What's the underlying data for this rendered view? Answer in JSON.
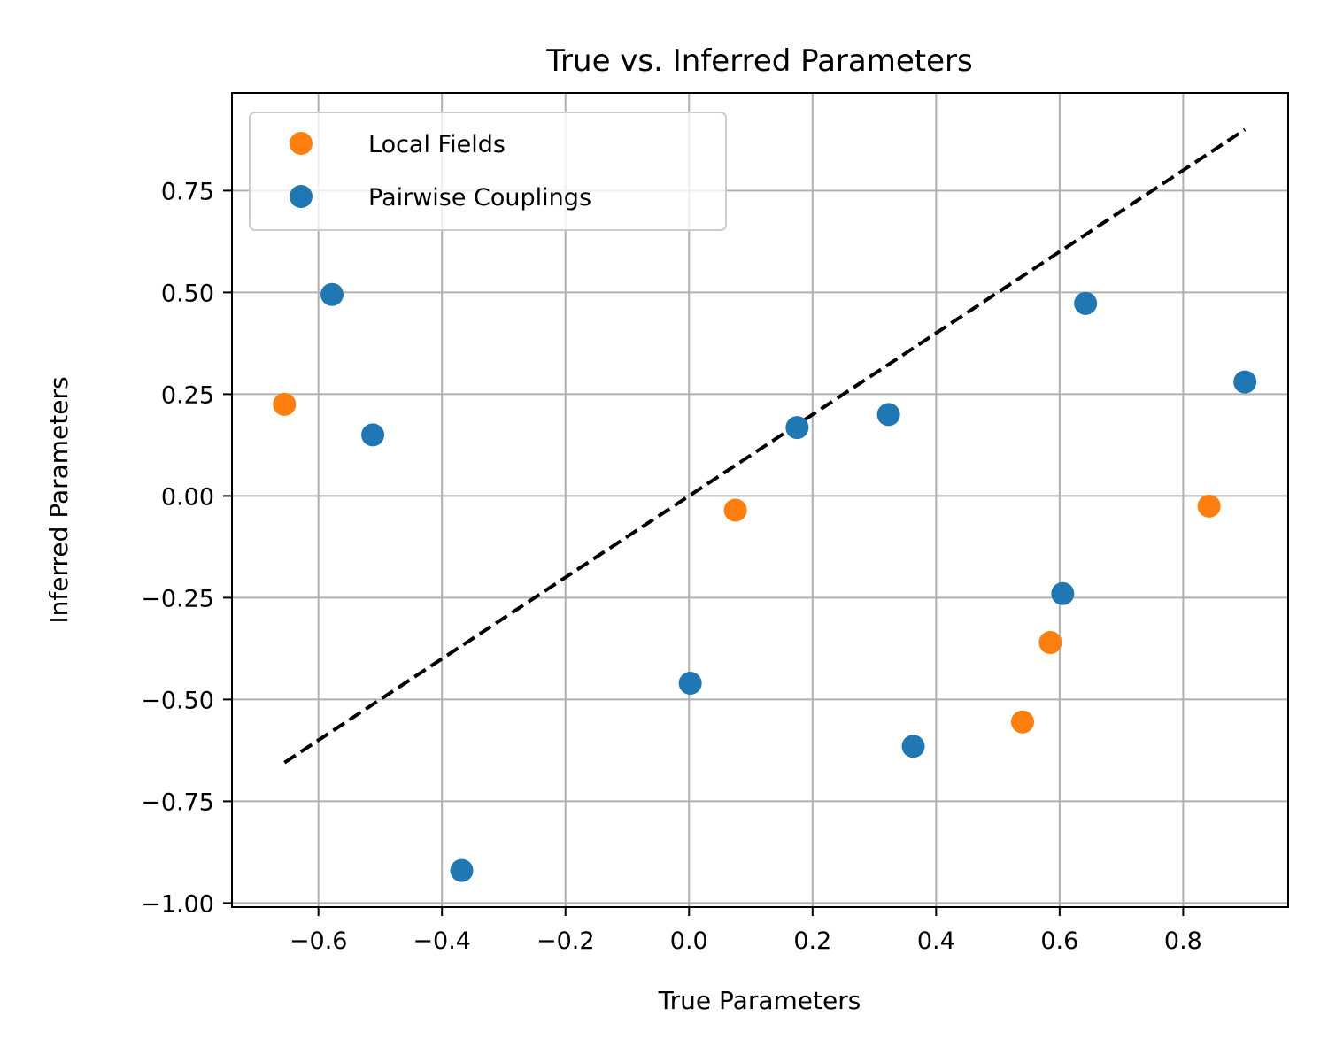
{
  "chart_data": {
    "type": "scatter",
    "title": "True vs. Inferred Parameters",
    "xlabel": "True Parameters",
    "ylabel": "Inferred Parameters",
    "xlim": [
      -0.74,
      0.97
    ],
    "ylim": [
      -1.01,
      0.99
    ],
    "xticks": [
      -0.6,
      -0.4,
      -0.2,
      0.0,
      0.2,
      0.4,
      0.6,
      0.8
    ],
    "xtick_labels": [
      "−0.6",
      "−0.4",
      "−0.2",
      "0.0",
      "0.2",
      "0.4",
      "0.6",
      "0.8"
    ],
    "yticks": [
      -1.0,
      -0.75,
      -0.5,
      -0.25,
      0.0,
      0.25,
      0.5,
      0.75
    ],
    "ytick_labels": [
      "−1.00",
      "−0.75",
      "−0.50",
      "−0.25",
      "0.00",
      "0.25",
      "0.50",
      "0.75"
    ],
    "grid": true,
    "legend_position": "upper-left",
    "series": [
      {
        "name": "Local Fields",
        "color": "#ff7f0e",
        "points": [
          [
            -0.655,
            0.225
          ],
          [
            0.075,
            -0.035
          ],
          [
            0.54,
            -0.555
          ],
          [
            0.585,
            -0.36
          ],
          [
            0.842,
            -0.025
          ]
        ]
      },
      {
        "name": "Pairwise Couplings",
        "color": "#1f77b4",
        "points": [
          [
            -0.578,
            0.495
          ],
          [
            -0.512,
            0.15
          ],
          [
            -0.368,
            -0.92
          ],
          [
            0.002,
            -0.46
          ],
          [
            0.175,
            0.168
          ],
          [
            0.323,
            0.2
          ],
          [
            0.363,
            -0.615
          ],
          [
            0.605,
            -0.24
          ],
          [
            0.642,
            0.473
          ],
          [
            0.9,
            0.28
          ]
        ]
      }
    ],
    "reference_line": {
      "style": "dashed",
      "color": "#000000",
      "from": [
        -0.655,
        -0.655
      ],
      "to": [
        0.9,
        0.9
      ]
    }
  }
}
